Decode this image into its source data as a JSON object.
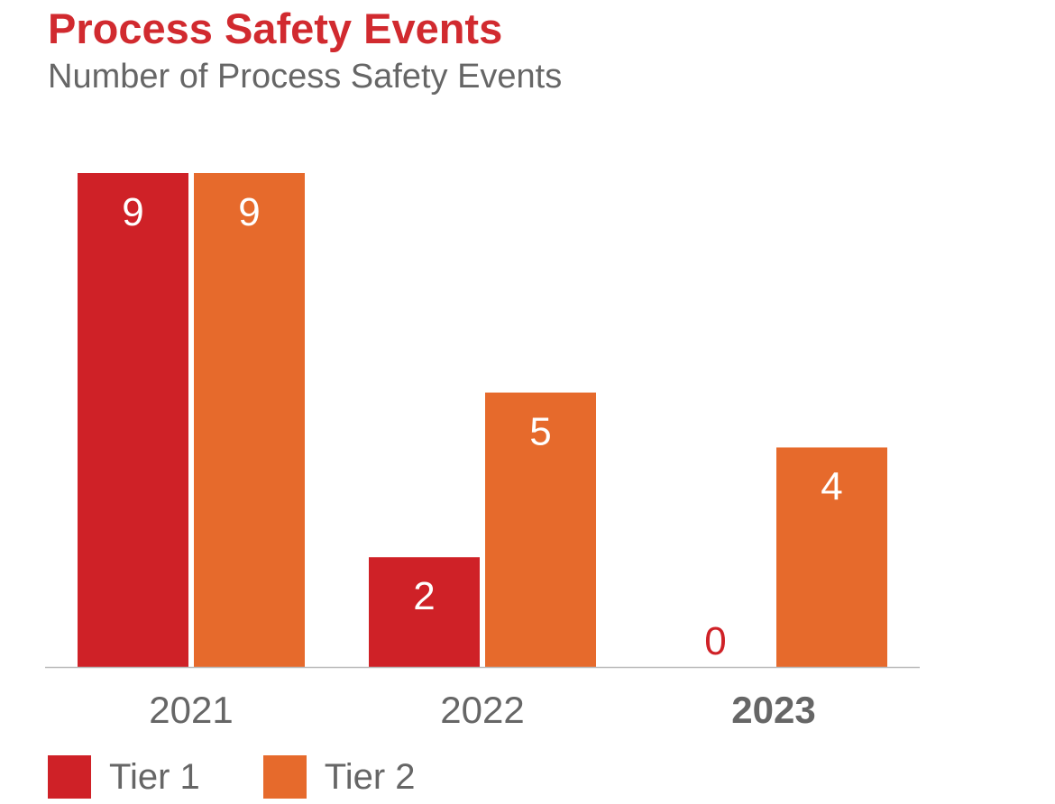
{
  "header": {
    "title": "Process Safety Events",
    "subtitle": "Number of Process Safety Events"
  },
  "colors": {
    "title": "#d12a2f",
    "tier1": "#cf2127",
    "tier2": "#e66a2c",
    "text": "#666666",
    "baseline": "#bbbbbb"
  },
  "legend": {
    "items": [
      {
        "label": "Tier 1",
        "color": "#cf2127"
      },
      {
        "label": "Tier 2",
        "color": "#e66a2c"
      }
    ]
  },
  "chart_data": {
    "type": "bar",
    "title": "Process Safety Events",
    "subtitle": "Number of Process Safety Events",
    "categories": [
      "2021",
      "2022",
      "2023"
    ],
    "bold_categories": [
      "2023"
    ],
    "series": [
      {
        "name": "Tier 1",
        "color": "#cf2127",
        "values": [
          9,
          2,
          0
        ]
      },
      {
        "name": "Tier 2",
        "color": "#e66a2c",
        "values": [
          9,
          5,
          4
        ]
      }
    ],
    "ylim": [
      0,
      9
    ],
    "xlabel": "",
    "ylabel": "",
    "grid": false,
    "legend_position": "bottom-left",
    "data_labels": true
  }
}
